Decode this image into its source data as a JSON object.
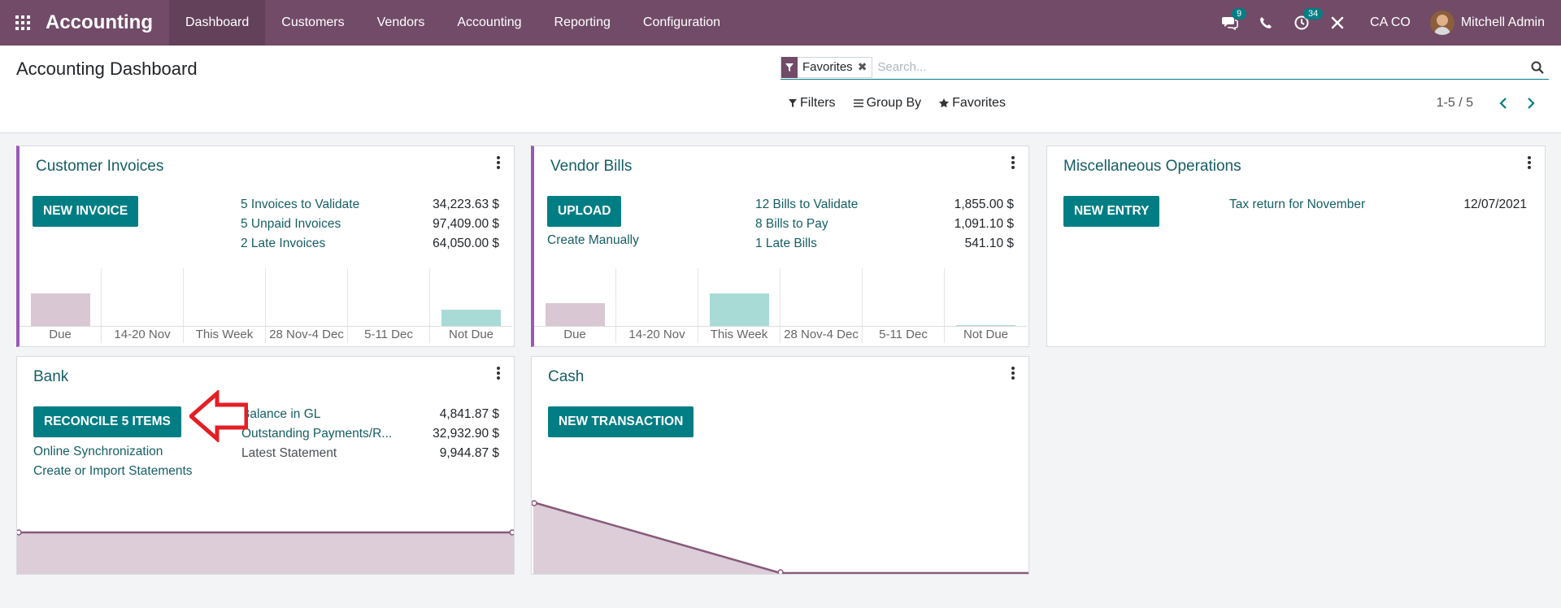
{
  "navbar": {
    "brand": "Accounting",
    "menu": [
      "Dashboard",
      "Customers",
      "Vendors",
      "Accounting",
      "Reporting",
      "Configuration"
    ],
    "messages_badge": "9",
    "activities_badge": "34",
    "company": "CA CO",
    "user": "Mitchell Admin"
  },
  "control": {
    "title": "Accounting Dashboard",
    "facet_label": "Favorites",
    "search_placeholder": "Search...",
    "filters_label": "Filters",
    "groupby_label": "Group By",
    "favorites_label": "Favorites",
    "pager": "1-5 / 5"
  },
  "cards": {
    "customer_invoices": {
      "title": "Customer Invoices",
      "button": "NEW INVOICE",
      "stats": [
        {
          "label": "5 Invoices to Validate",
          "value": "34,223.63 $"
        },
        {
          "label": "5 Unpaid Invoices",
          "value": "97,409.00 $"
        },
        {
          "label": "2 Late Invoices",
          "value": "64,050.00 $"
        }
      ],
      "graph": {
        "labels": [
          "Due",
          "14-20 Nov",
          "This Week",
          "28 Nov-4 Dec",
          "5-11 Dec",
          "Not Due"
        ],
        "values": [
          34223.63,
          0,
          0,
          0,
          0,
          17500
        ],
        "colors": [
          "#d9c7d3",
          "#d9c7d3",
          "#d9c7d3",
          "#a8dbd6",
          "#a8dbd6",
          "#a8dbd6"
        ]
      }
    },
    "vendor_bills": {
      "title": "Vendor Bills",
      "button": "UPLOAD",
      "link": "Create Manually",
      "stats": [
        {
          "label": "12 Bills to Validate",
          "value": "1,855.00 $"
        },
        {
          "label": "8 Bills to Pay",
          "value": "1,091.10 $"
        },
        {
          "label": "1 Late Bills",
          "value": "541.10 $"
        }
      ],
      "graph": {
        "labels": [
          "Due",
          "14-20 Nov",
          "This Week",
          "28 Nov-4 Dec",
          "5-11 Dec",
          "Not Due"
        ],
        "values": [
          541.1,
          0,
          770,
          0,
          0,
          25
        ],
        "colors": [
          "#d9c7d3",
          "#d9c7d3",
          "#a8dbd6",
          "#a8dbd6",
          "#a8dbd6",
          "#a8dbd6"
        ]
      }
    },
    "misc": {
      "title": "Miscellaneous Operations",
      "button": "NEW ENTRY",
      "item_label": "Tax return for November",
      "item_date": "12/07/2021"
    },
    "bank": {
      "title": "Bank",
      "button": "RECONCILE 5 ITEMS",
      "links": [
        "Online Synchronization",
        "Create or Import Statements"
      ],
      "stats": [
        {
          "label": "Balance in GL",
          "value": "4,841.87 $"
        },
        {
          "label": "Outstanding Payments/R...",
          "value": "32,932.90 $"
        },
        {
          "label": "Latest Statement",
          "value": "9,944.87 $"
        }
      ]
    },
    "cash": {
      "title": "Cash",
      "button": "NEW TRANSACTION"
    }
  },
  "colors": {
    "navbar": "#714b67",
    "primary": "#017e84",
    "link": "#155e63",
    "accent_border": "#9b59b6",
    "annotation_arrow": "#e41e26"
  }
}
